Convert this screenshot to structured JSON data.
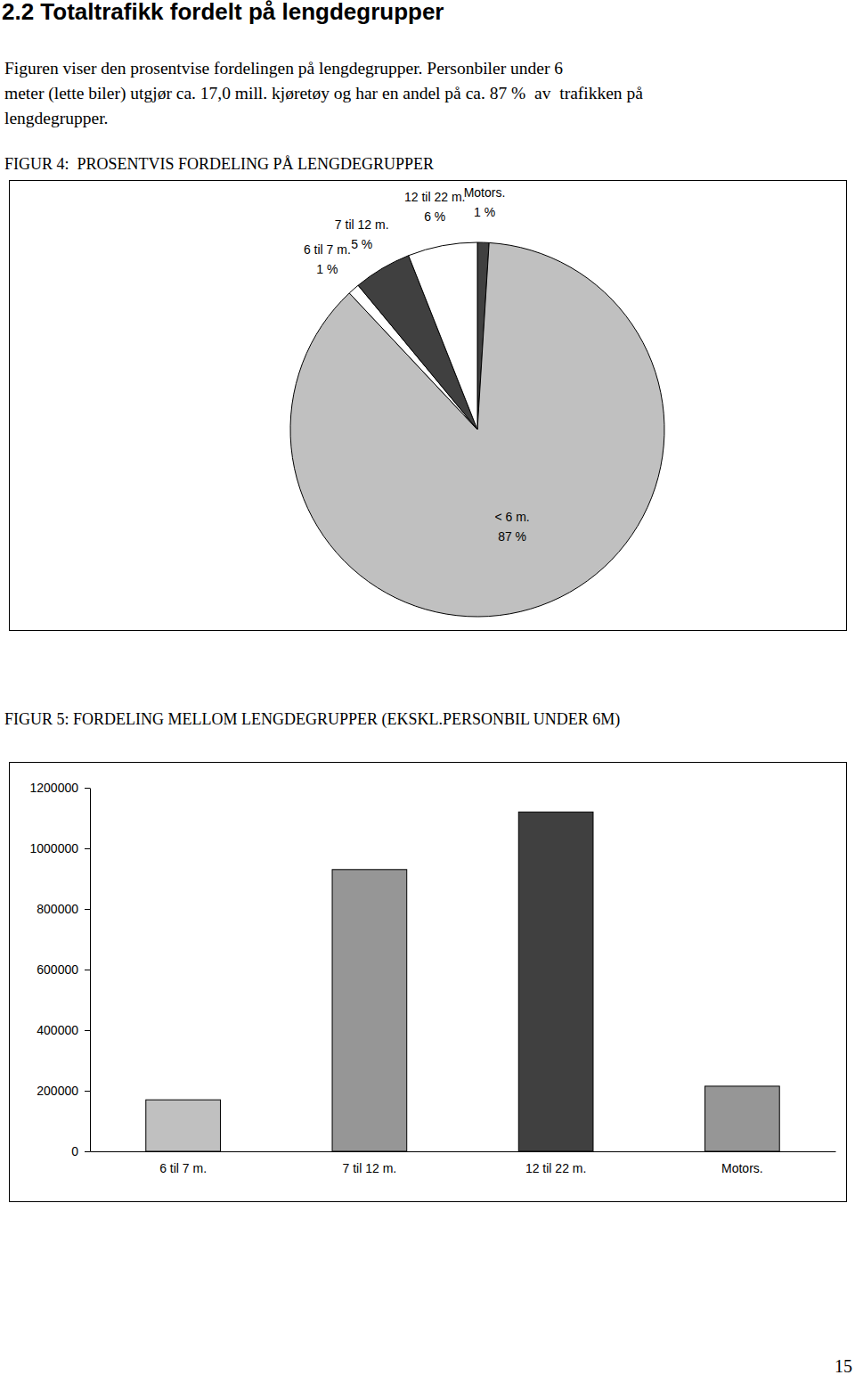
{
  "heading": "2.2 Totaltrafikk fordelt på lengdegrupper",
  "paragraph": [
    "Figuren viser den prosentvise fordelingen på lengdegrupper. Personbiler under 6",
    "meter (lette biler) utgjør ca. 17,0 mill. kjøretøy og har en andel på ca. 87 %  av  trafikken på",
    "lengdegrupper."
  ],
  "chart_data": [
    {
      "type": "pie",
      "title": "FIGUR 4:  PROSENTVIS FORDELING PÅ LENGDEGRUPPER",
      "categories": [
        "Motors.",
        "< 6 m.",
        "6 til 7 m.",
        "7 til 12 m.",
        "12 til 22 m."
      ],
      "values": [
        1,
        87,
        1,
        5,
        6
      ],
      "value_labels": [
        "1 %",
        "87 %",
        "1 %",
        "5 %",
        "6 %"
      ],
      "colors": [
        "#404040",
        "#c0c0c0",
        "#ffffff",
        "#404040",
        "#ffffff"
      ],
      "data_labels": true
    },
    {
      "type": "bar",
      "title": "FIGUR 5: FORDELING MELLOM LENGDEGRUPPER (EKSKL.PERSONBIL UNDER 6M)",
      "categories": [
        "6 til 7 m.",
        "7 til 12 m.",
        "12 til 22 m.",
        "Motors."
      ],
      "values": [
        170000,
        930000,
        1120000,
        215000
      ],
      "colors": [
        "#c0c0c0",
        "#969696",
        "#404040",
        "#969696"
      ],
      "ylim": [
        0,
        1200000
      ],
      "yticks": [
        0,
        200000,
        400000,
        600000,
        800000,
        1000000,
        1200000
      ],
      "grid": false
    }
  ],
  "page_number": "15"
}
